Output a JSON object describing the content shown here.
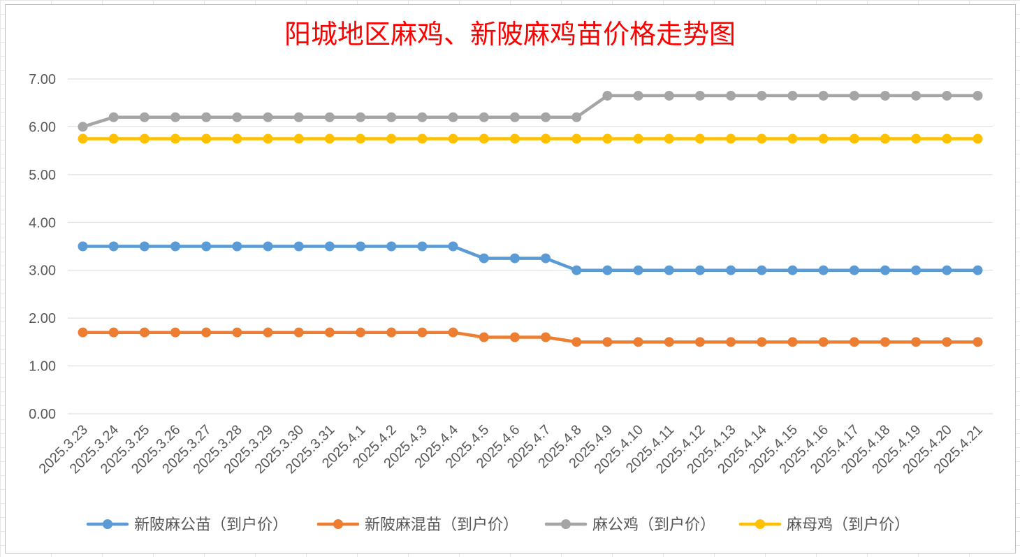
{
  "chart_data": {
    "type": "line",
    "title": "阳城地区麻鸡、新陂麻鸡苗价格走势图",
    "xlabel": "",
    "ylabel": "",
    "ylim": [
      0,
      7
    ],
    "y_ticks": [
      "0.00",
      "1.00",
      "2.00",
      "3.00",
      "4.00",
      "5.00",
      "6.00",
      "7.00"
    ],
    "grid": true,
    "legend_position": "bottom",
    "categories": [
      "2025.3.23",
      "2025.3.24",
      "2025.3.25",
      "2025.3.26",
      "2025.3.27",
      "2025.3.28",
      "2025.3.29",
      "2025.3.30",
      "2025.3.31",
      "2025.4.1",
      "2025.4.2",
      "2025.4.3",
      "2025.4.4",
      "2025.4.5",
      "2025.4.6",
      "2025.4.7",
      "2025.4.8",
      "2025.4.9",
      "2025.4.10",
      "2025.4.11",
      "2025.4.12",
      "2025.4.13",
      "2025.4.14",
      "2025.4.15",
      "2025.4.16",
      "2025.4.17",
      "2025.4.18",
      "2025.4.19",
      "2025.4.20",
      "2025.4.21"
    ],
    "series": [
      {
        "name": "新陂麻公苗（到户价）",
        "color": "#5b9bd5",
        "values": [
          3.5,
          3.5,
          3.5,
          3.5,
          3.5,
          3.5,
          3.5,
          3.5,
          3.5,
          3.5,
          3.5,
          3.5,
          3.5,
          3.25,
          3.25,
          3.25,
          3.0,
          3.0,
          3.0,
          3.0,
          3.0,
          3.0,
          3.0,
          3.0,
          3.0,
          3.0,
          3.0,
          3.0,
          3.0,
          3.0
        ]
      },
      {
        "name": "新陂麻混苗（到户价）",
        "color": "#ed7d31",
        "values": [
          1.7,
          1.7,
          1.7,
          1.7,
          1.7,
          1.7,
          1.7,
          1.7,
          1.7,
          1.7,
          1.7,
          1.7,
          1.7,
          1.6,
          1.6,
          1.6,
          1.5,
          1.5,
          1.5,
          1.5,
          1.5,
          1.5,
          1.5,
          1.5,
          1.5,
          1.5,
          1.5,
          1.5,
          1.5,
          1.5
        ]
      },
      {
        "name": "麻公鸡（到户价）",
        "color": "#a5a5a5",
        "values": [
          6.0,
          6.2,
          6.2,
          6.2,
          6.2,
          6.2,
          6.2,
          6.2,
          6.2,
          6.2,
          6.2,
          6.2,
          6.2,
          6.2,
          6.2,
          6.2,
          6.2,
          6.65,
          6.65,
          6.65,
          6.65,
          6.65,
          6.65,
          6.65,
          6.65,
          6.65,
          6.65,
          6.65,
          6.65,
          6.65
        ]
      },
      {
        "name": "麻母鸡（到户价）",
        "color": "#ffc000",
        "values": [
          5.75,
          5.75,
          5.75,
          5.75,
          5.75,
          5.75,
          5.75,
          5.75,
          5.75,
          5.75,
          5.75,
          5.75,
          5.75,
          5.75,
          5.75,
          5.75,
          5.75,
          5.75,
          5.75,
          5.75,
          5.75,
          5.75,
          5.75,
          5.75,
          5.75,
          5.75,
          5.75,
          5.75,
          5.75,
          5.75
        ]
      }
    ]
  }
}
